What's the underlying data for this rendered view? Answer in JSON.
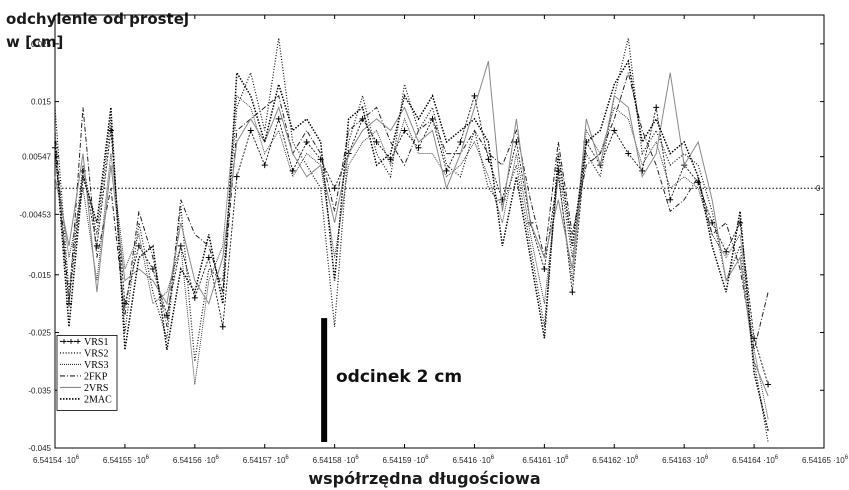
{
  "chart_data": {
    "type": "line",
    "ylabel_line1": "odchylenie od prostej",
    "ylabel_line2": "w [cm]",
    "xlabel": "współrzędna długościowa",
    "x_ticks": [
      "6.54154",
      "6.54155",
      "6.54156",
      "6.54157",
      "6.54158",
      "6.54159",
      "6.5416",
      "6.54161",
      "6.54162",
      "6.54163",
      "6.54164",
      "6.54165"
    ],
    "x_tick_suffix": "·10",
    "x_tick_exp": "6",
    "xlim": [
      6541540,
      6541650
    ],
    "y_ticks": [
      "0.025",
      "0.015",
      "0.00547",
      "-0.00453",
      "-0.015",
      "-0.025",
      "-0.035",
      "-0.045"
    ],
    "ylim": [
      -0.045,
      0.03
    ],
    "zero_label": "0",
    "zero_line": 0,
    "annotation": "odcinek 2 cm",
    "scale_bar": {
      "x": 6541578.5,
      "y_from": -0.045,
      "y_to": -0.0225
    },
    "series": [
      {
        "name": "VRS1",
        "style": "plus",
        "x": [
          6541540,
          6541542,
          6541544,
          6541546,
          6541548,
          6541550,
          6541552,
          6541554,
          6541556,
          6541558,
          6541560,
          6541562,
          6541564,
          6541566,
          6541568,
          6541570,
          6541572,
          6541574,
          6541576,
          6541578,
          6541580,
          6541582,
          6541584,
          6541586,
          6541588,
          6541590,
          6541592,
          6541594,
          6541596,
          6541598,
          6541600,
          6541602,
          6541604,
          6541606,
          6541608,
          6541610,
          6541612,
          6541614,
          6541616,
          6541618,
          6541620,
          6541622,
          6541624,
          6541626,
          6541628,
          6541630,
          6541632,
          6541634,
          6541636,
          6541638,
          6541640,
          6541642
        ],
        "y": [
          0.007,
          -0.02,
          0.003,
          -0.01,
          0.01,
          -0.02,
          -0.01,
          -0.014,
          -0.022,
          -0.01,
          -0.019,
          -0.012,
          -0.024,
          0.002,
          0.01,
          0.004,
          0.012,
          0.003,
          0.008,
          0.005,
          0.0,
          0.006,
          0.012,
          0.008,
          0.005,
          0.01,
          0.007,
          0.012,
          0.003,
          0.008,
          0.016,
          0.005,
          -0.002,
          0.008,
          -0.006,
          -0.014,
          0.003,
          -0.018,
          0.008,
          0.004,
          0.01,
          0.006,
          0.003,
          0.014,
          -0.002,
          0.004,
          0.001,
          -0.006,
          -0.011,
          -0.006,
          -0.026,
          -0.034
        ]
      },
      {
        "name": "VRS2",
        "style": "dotted",
        "x": [
          6541540,
          6541542,
          6541544,
          6541546,
          6541548,
          6541550,
          6541552,
          6541554,
          6541556,
          6541558,
          6541560,
          6541562,
          6541564,
          6541566,
          6541568,
          6541570,
          6541572,
          6541574,
          6541576,
          6541578,
          6541580,
          6541582,
          6541584,
          6541586,
          6541588,
          6541590,
          6541592,
          6541594,
          6541596,
          6541598,
          6541600,
          6541602,
          6541604,
          6541606,
          6541608,
          6541610,
          6541612,
          6541614,
          6541616,
          6541618,
          6541620,
          6541622,
          6541624,
          6541626,
          6541628,
          6541630,
          6541632,
          6541634,
          6541636,
          6541638,
          6541640,
          6541642
        ],
        "y": [
          0.014,
          -0.018,
          0.004,
          -0.008,
          0.012,
          -0.025,
          -0.006,
          -0.018,
          -0.026,
          -0.003,
          -0.03,
          -0.014,
          -0.016,
          0.014,
          0.02,
          0.01,
          0.026,
          0.008,
          0.004,
          0.0,
          -0.024,
          0.008,
          0.016,
          0.006,
          0.002,
          0.018,
          0.01,
          0.014,
          0.004,
          0.002,
          0.01,
          0.0,
          -0.003,
          0.004,
          -0.01,
          -0.024,
          0.004,
          -0.012,
          0.006,
          0.002,
          0.016,
          0.026,
          0.006,
          0.01,
          0.004,
          0.006,
          0.004,
          -0.004,
          -0.016,
          -0.01,
          -0.03,
          -0.044
        ]
      },
      {
        "name": "VRS3",
        "style": "dotted-fine",
        "x": [
          6541540,
          6541542,
          6541544,
          6541546,
          6541548,
          6541550,
          6541552,
          6541554,
          6541556,
          6541558,
          6541560,
          6541562,
          6541564,
          6541566,
          6541568,
          6541570,
          6541572,
          6541574,
          6541576,
          6541578,
          6541580,
          6541582,
          6541584,
          6541586,
          6541588,
          6541590,
          6541592,
          6541594,
          6541596,
          6541598,
          6541600,
          6541602,
          6541604,
          6541606,
          6541608,
          6541610,
          6541612,
          6541614,
          6541616,
          6541618,
          6541620,
          6541622,
          6541624,
          6541626,
          6541628,
          6541630,
          6541632,
          6541634,
          6541636,
          6541638,
          6541640,
          6541642
        ],
        "y": [
          0.005,
          -0.012,
          0.0,
          -0.016,
          0.006,
          -0.014,
          -0.008,
          -0.02,
          -0.018,
          -0.01,
          -0.034,
          -0.016,
          -0.01,
          0.016,
          0.014,
          0.006,
          0.01,
          0.002,
          0.006,
          0.004,
          -0.012,
          0.004,
          0.008,
          0.01,
          0.004,
          0.012,
          0.006,
          0.006,
          0.002,
          0.004,
          0.008,
          0.002,
          -0.006,
          0.006,
          -0.008,
          -0.02,
          0.002,
          -0.016,
          0.01,
          0.006,
          0.014,
          0.012,
          0.004,
          0.008,
          0.0,
          0.002,
          0.0,
          -0.008,
          -0.012,
          -0.008,
          -0.028,
          -0.04
        ]
      },
      {
        "name": "2FKP",
        "style": "dashdot",
        "x": [
          6541540,
          6541542,
          6541544,
          6541546,
          6541548,
          6541550,
          6541552,
          6541554,
          6541556,
          6541558,
          6541560,
          6541562,
          6541564,
          6541566,
          6541568,
          6541570,
          6541572,
          6541574,
          6541576,
          6541578,
          6541580,
          6541582,
          6541584,
          6541586,
          6541588,
          6541590,
          6541592,
          6541594,
          6541596,
          6541598,
          6541600,
          6541602,
          6541604,
          6541606,
          6541608,
          6541610,
          6541612,
          6541614,
          6541616,
          6541618,
          6541620,
          6541622,
          6541624,
          6541626,
          6541628,
          6541630,
          6541632,
          6541634,
          6541636,
          6541638,
          6541640,
          6541642
        ],
        "y": [
          0.01,
          -0.02,
          0.014,
          -0.012,
          0.0,
          -0.022,
          -0.004,
          -0.012,
          -0.024,
          -0.002,
          -0.008,
          -0.01,
          -0.018,
          0.01,
          0.012,
          0.014,
          0.016,
          0.006,
          0.01,
          0.006,
          -0.004,
          0.01,
          0.012,
          0.014,
          0.008,
          0.004,
          0.01,
          0.012,
          0.006,
          0.006,
          0.01,
          0.006,
          0.004,
          0.01,
          -0.002,
          -0.012,
          0.008,
          -0.008,
          0.004,
          0.006,
          0.012,
          0.02,
          0.01,
          0.004,
          -0.004,
          -0.002,
          0.002,
          -0.008,
          -0.006,
          -0.014,
          -0.028,
          -0.018
        ]
      },
      {
        "name": "2VRS",
        "style": "solid",
        "x": [
          6541540,
          6541542,
          6541544,
          6541546,
          6541548,
          6541550,
          6541552,
          6541554,
          6541556,
          6541558,
          6541560,
          6541562,
          6541564,
          6541566,
          6541568,
          6541570,
          6541572,
          6541574,
          6541576,
          6541578,
          6541580,
          6541582,
          6541584,
          6541586,
          6541588,
          6541590,
          6541592,
          6541594,
          6541596,
          6541598,
          6541600,
          6541602,
          6541604,
          6541606,
          6541608,
          6541610,
          6541612,
          6541614,
          6541616,
          6541618,
          6541620,
          6541622,
          6541624,
          6541626,
          6541628,
          6541630,
          6541632,
          6541634,
          6541636,
          6541638,
          6541640,
          6541642
        ],
        "y": [
          0.002,
          -0.01,
          0.006,
          -0.018,
          0.004,
          -0.016,
          -0.014,
          -0.016,
          -0.02,
          -0.006,
          -0.016,
          -0.02,
          -0.012,
          0.008,
          0.012,
          0.008,
          0.014,
          0.006,
          0.002,
          0.004,
          -0.006,
          0.006,
          0.01,
          0.012,
          0.01,
          0.014,
          0.008,
          0.01,
          0.0,
          0.006,
          0.014,
          0.022,
          -0.004,
          0.012,
          -0.006,
          -0.012,
          -0.002,
          -0.014,
          0.012,
          0.004,
          0.016,
          0.014,
          0.002,
          0.006,
          0.02,
          0.004,
          0.008,
          -0.002,
          -0.016,
          -0.012,
          -0.03,
          -0.036
        ]
      },
      {
        "name": "2MAC",
        "style": "dotted-heavy",
        "x": [
          6541540,
          6541542,
          6541544,
          6541546,
          6541548,
          6541550,
          6541552,
          6541554,
          6541556,
          6541558,
          6541560,
          6541562,
          6541564,
          6541566,
          6541568,
          6541570,
          6541572,
          6541574,
          6541576,
          6541578,
          6541580,
          6541582,
          6541584,
          6541586,
          6541588,
          6541590,
          6541592,
          6541594,
          6541596,
          6541598,
          6541600,
          6541602,
          6541604,
          6541606,
          6541608,
          6541610,
          6541612,
          6541614,
          6541616,
          6541618,
          6541620,
          6541622,
          6541624,
          6541626,
          6541628,
          6541630,
          6541632,
          6541634,
          6541636,
          6541638,
          6541640,
          6541642
        ],
        "y": [
          0.008,
          -0.024,
          0.002,
          -0.006,
          0.014,
          -0.028,
          -0.012,
          -0.01,
          -0.028,
          -0.014,
          -0.018,
          -0.008,
          -0.02,
          0.02,
          0.016,
          0.008,
          0.018,
          0.01,
          0.012,
          0.008,
          -0.016,
          0.012,
          0.014,
          0.004,
          0.006,
          0.016,
          0.012,
          0.016,
          0.008,
          0.01,
          0.012,
          0.008,
          -0.01,
          0.002,
          -0.012,
          -0.026,
          0.006,
          -0.01,
          0.008,
          0.01,
          0.018,
          0.022,
          0.008,
          0.012,
          0.006,
          0.008,
          0.002,
          -0.01,
          -0.018,
          -0.004,
          -0.032,
          -0.042
        ]
      }
    ]
  }
}
